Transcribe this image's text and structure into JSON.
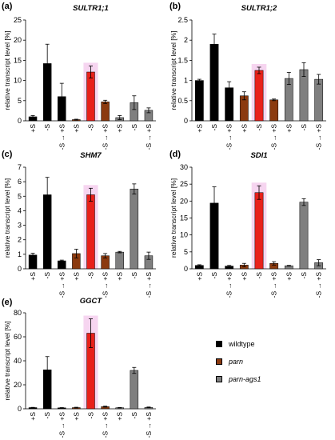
{
  "figure": {
    "colors": {
      "wildtype": "#000000",
      "parn": "#8B3A0F",
      "parn_ags1": "#7F7F7F",
      "highlight_bar": "#E8211B",
      "highlight_bg": "#F6D5F0"
    },
    "legend": [
      {
        "key": "wildtype",
        "label": "wildtype",
        "italic": false
      },
      {
        "key": "parn",
        "label": "parn",
        "italic": true
      },
      {
        "key": "parn_ags1",
        "label": "parn-ags1",
        "italic": true
      }
    ]
  },
  "chart_data": [
    {
      "type": "bar",
      "panel": "(a)",
      "title": "SULTR1;1",
      "ylabel": "relative transcript level [%]",
      "ylim": [
        0,
        25
      ],
      "yticks": [
        0,
        5,
        10,
        15,
        20,
        25
      ],
      "categories": [
        "+S",
        "-S",
        "-S → +S",
        "+S",
        "-S",
        "-S → +S",
        "+S",
        "-S",
        "-S → +S"
      ],
      "groups": [
        "wildtype",
        "wildtype",
        "wildtype",
        "parn",
        "parn",
        "parn",
        "parn_ags1",
        "parn_ags1",
        "parn_ags1"
      ],
      "values": [
        1.0,
        14.2,
        6.0,
        0.3,
        12.1,
        4.7,
        0.8,
        4.5,
        2.6
      ],
      "errors": [
        0.3,
        4.8,
        3.3,
        0.1,
        1.5,
        0.4,
        0.5,
        1.7,
        0.6
      ],
      "highlight_index": 4
    },
    {
      "type": "bar",
      "panel": "(b)",
      "title": "SULTR1;2",
      "ylabel": "relative transcript level [%]",
      "ylim": [
        0,
        2.5
      ],
      "yticks": [
        0,
        0.5,
        1,
        1.5,
        2,
        2.5
      ],
      "categories": [
        "+S",
        "-S",
        "-S → +S",
        "+S",
        "-S",
        "-S → +S",
        "+S",
        "-S",
        "-S → +S"
      ],
      "groups": [
        "wildtype",
        "wildtype",
        "wildtype",
        "parn",
        "parn",
        "parn",
        "parn_ags1",
        "parn_ags1",
        "parn_ags1"
      ],
      "values": [
        1.0,
        1.9,
        0.82,
        0.62,
        1.25,
        0.52,
        1.05,
        1.27,
        1.03
      ],
      "errors": [
        0.03,
        0.25,
        0.15,
        0.1,
        0.08,
        0.02,
        0.15,
        0.17,
        0.12
      ],
      "highlight_index": 4
    },
    {
      "type": "bar",
      "panel": "(c)",
      "title": "SHM7",
      "ylabel": "relative transcript level [%]",
      "ylim": [
        0,
        7
      ],
      "yticks": [
        0,
        1,
        2,
        3,
        4,
        5,
        6,
        7
      ],
      "categories": [
        "+S",
        "-S",
        "-S → +S",
        "+S",
        "-S",
        "-S → +S",
        "+S",
        "-S",
        "-S → +S"
      ],
      "groups": [
        "wildtype",
        "wildtype",
        "wildtype",
        "parn",
        "parn",
        "parn",
        "parn_ags1",
        "parn_ags1",
        "parn_ags1"
      ],
      "values": [
        0.95,
        5.1,
        0.55,
        1.05,
        5.1,
        0.9,
        1.15,
        5.5,
        0.9
      ],
      "errors": [
        0.12,
        1.2,
        0.05,
        0.3,
        0.45,
        0.15,
        0.05,
        0.35,
        0.25
      ],
      "highlight_index": 4
    },
    {
      "type": "bar",
      "panel": "(d)",
      "title": "SDI1",
      "ylabel": "relative transcript level [%]",
      "ylim": [
        0,
        30
      ],
      "yticks": [
        0,
        5,
        10,
        15,
        20,
        25,
        30
      ],
      "categories": [
        "+S",
        "-S",
        "-S → +S",
        "+S",
        "-S",
        "-S → +S",
        "+S",
        "-S",
        "-S → +S"
      ],
      "groups": [
        "wildtype",
        "wildtype",
        "wildtype",
        "parn",
        "parn",
        "parn",
        "parn_ags1",
        "parn_ags1",
        "parn_ags1"
      ],
      "values": [
        1.0,
        19.4,
        0.8,
        1.1,
        22.5,
        1.6,
        0.9,
        19.7,
        1.8
      ],
      "errors": [
        0.2,
        4.8,
        0.2,
        0.5,
        2.0,
        0.5,
        0.1,
        1.0,
        0.9
      ],
      "highlight_index": 4
    },
    {
      "type": "bar",
      "panel": "(e)",
      "title": "GGCT",
      "ylabel": "relative transcript level [%]",
      "ylim": [
        0,
        80
      ],
      "yticks": [
        0,
        20,
        40,
        60,
        80
      ],
      "categories": [
        "+S",
        "-S",
        "-S → +S",
        "+S",
        "-S",
        "-S → +S",
        "+S",
        "-S",
        "-S → +S"
      ],
      "groups": [
        "wildtype",
        "wildtype",
        "wildtype",
        "parn",
        "parn",
        "parn",
        "parn_ags1",
        "parn_ags1",
        "parn_ags1"
      ],
      "values": [
        1.0,
        32.5,
        0.8,
        1.0,
        63.0,
        1.8,
        0.9,
        32.0,
        1.2
      ],
      "errors": [
        0.2,
        11.0,
        0.2,
        0.3,
        12.0,
        0.4,
        0.2,
        2.5,
        0.3
      ],
      "highlight_index": 4
    }
  ]
}
